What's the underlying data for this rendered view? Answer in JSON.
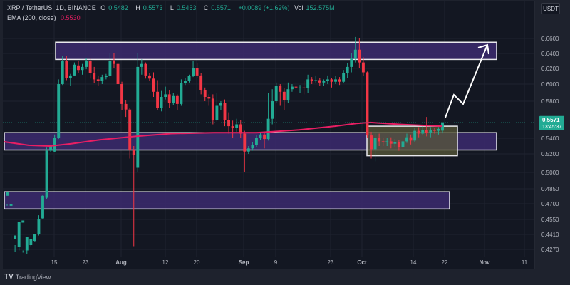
{
  "header": {
    "symbol": "XRP / TetherUS, 1D, BINANCE",
    "open_label": "O",
    "open": "0.5482",
    "high_label": "H",
    "high": "0.5573",
    "low_label": "L",
    "low": "0.5453",
    "close_label": "C",
    "close": "0.5571",
    "change": "+0.0089 (+1.62%)",
    "vol_label": "Vol",
    "vol": "152.575M",
    "ema_label": "EMA (200, close)",
    "ema_value": "0.5530"
  },
  "currency_button": "USDT",
  "last_price": {
    "value": "0.5571",
    "countdown": "13:45:37"
  },
  "branding": {
    "mark": "TV",
    "name": "TradingView"
  },
  "colors": {
    "background": "#131722",
    "up": "#22ab94",
    "down": "#f23645",
    "ema": "#e91e63",
    "zone_fill": "#3c2a6e",
    "consolidation_fill": "#5a5a3a"
  },
  "chart_data": {
    "type": "candlestick",
    "title": "XRP / TetherUS, 1D, BINANCE",
    "ylabel": "USDT",
    "y_ticks": [
      "0.6600",
      "0.6400",
      "0.6200",
      "0.6000",
      "0.5800",
      "0.5400",
      "0.5200",
      "0.5000",
      "0.4850",
      "0.4700",
      "0.4550",
      "0.4410",
      "0.4270"
    ],
    "x_ticks": [
      "15",
      "23",
      "Aug",
      "12",
      "20",
      "Sep",
      "9",
      "23",
      "Oct",
      "14",
      "22",
      "Nov",
      "11"
    ],
    "ylim": [
      0.42,
      0.67
    ],
    "indicators": [
      {
        "name": "EMA (200, close)",
        "value": 0.553
      }
    ],
    "zones": [
      {
        "name": "resistance",
        "top": 0.655,
        "bottom": 0.632
      },
      {
        "name": "support",
        "top": 0.546,
        "bottom": 0.525
      },
      {
        "name": "lower-support",
        "top": 0.482,
        "bottom": 0.465
      },
      {
        "name": "consolidation",
        "top": 0.553,
        "bottom": 0.518
      }
    ],
    "annotation": "projected upward arrow toward 0.65 resistance",
    "last_candle": {
      "open": 0.5482,
      "high": 0.5573,
      "low": 0.5453,
      "close": 0.5571,
      "change_pct": 1.62
    }
  }
}
